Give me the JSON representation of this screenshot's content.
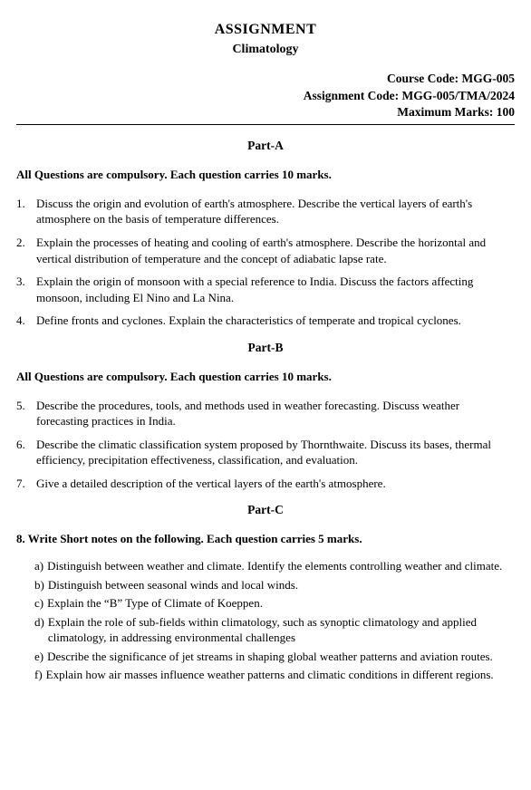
{
  "header": {
    "title": "ASSIGNMENT",
    "subject": "Climatology"
  },
  "meta": {
    "course_code_label": "Course Code: ",
    "course_code": "MGG-005",
    "assignment_code_label": "Assignment Code: ",
    "assignment_code": "MGG-005/TMA/2024",
    "max_marks_label": "Maximum Marks: ",
    "max_marks": "100"
  },
  "partA": {
    "heading": "Part-A",
    "instruction": "All Questions are compulsory. Each question carries 10 marks.",
    "questions": [
      {
        "num": "1.",
        "text": "Discuss the origin and evolution of earth's atmosphere. Describe the vertical layers of earth's atmosphere on the basis of temperature differences."
      },
      {
        "num": "2.",
        "text": "Explain the processes of heating and cooling of earth's atmosphere. Describe the horizontal and vertical distribution of temperature and the concept of adiabatic lapse rate."
      },
      {
        "num": "3.",
        "text": "Explain the origin of monsoon with a special reference to India. Discuss the factors affecting monsoon, including El Nino and La Nina."
      },
      {
        "num": "4.",
        "text": "Define fronts and cyclones. Explain the characteristics of temperate and tropical cyclones."
      }
    ]
  },
  "partB": {
    "heading": "Part-B",
    "instruction": "All Questions are compulsory. Each question carries 10 marks.",
    "questions": [
      {
        "num": "5.",
        "text": "Describe the procedures, tools, and methods used in weather forecasting. Discuss weather forecasting practices in India."
      },
      {
        "num": "6.",
        "text": " Describe the climatic classification system proposed by Thornthwaite. Discuss its bases, thermal efficiency, precipitation effectiveness, classification, and evaluation."
      },
      {
        "num": "7.",
        "text": "Give a detailed description of the vertical layers of the earth's atmosphere."
      }
    ]
  },
  "partC": {
    "heading": "Part-C",
    "instruction": "8. Write Short notes on the following. Each question carries 5 marks.",
    "items": [
      {
        "label": "a)",
        "text": "Distinguish between weather and climate. Identify the elements controlling weather and climate."
      },
      {
        "label": "b)",
        "text": "Distinguish between seasonal winds and local winds."
      },
      {
        "label": "c)",
        "text": "Explain the “B” Type of Climate of Koeppen."
      },
      {
        "label": "d)",
        "text": "Explain the role of sub-fields within climatology, such as synoptic climatology and applied climatology, in addressing environmental challenges"
      },
      {
        "label": "e)",
        "text": "Describe the significance of jet streams in shaping global weather patterns and aviation routes."
      },
      {
        "label": "f)",
        "text": "Explain how air masses influence weather patterns and climatic conditions in different regions."
      }
    ]
  }
}
